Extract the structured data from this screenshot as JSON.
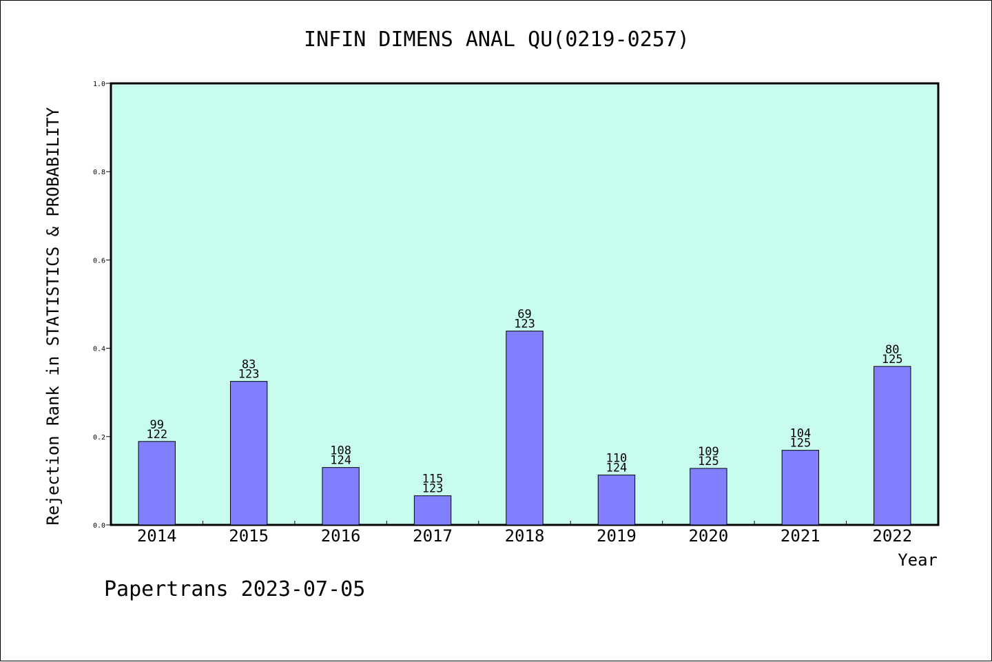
{
  "chart_data": {
    "type": "bar",
    "title": "INFIN DIMENS ANAL QU(0219-0257)",
    "xlabel": "Year",
    "ylabel": "Rejection Rank in STATISTICS & PROBABILITY",
    "ylim": [
      0,
      1.0
    ],
    "yticks": [
      "0.0",
      "0.2",
      "0.4",
      "0.6",
      "0.8",
      "1.0"
    ],
    "grid": false,
    "categories": [
      "2014",
      "2015",
      "2016",
      "2017",
      "2018",
      "2019",
      "2020",
      "2021",
      "2022"
    ],
    "values": [
      0.189,
      0.325,
      0.13,
      0.066,
      0.439,
      0.113,
      0.128,
      0.169,
      0.359
    ],
    "rank_labels": [
      "99",
      "83",
      "108",
      "115",
      "69",
      "110",
      "109",
      "104",
      "80"
    ],
    "total_labels": [
      "122",
      "123",
      "124",
      "123",
      "123",
      "124",
      "125",
      "125",
      "125"
    ],
    "colors": {
      "plot_background": "#c8fcee",
      "bar_fill": "#8080ff",
      "bar_stroke": "#000000"
    }
  },
  "footer": {
    "source": "Papertrans 2023-07-05"
  }
}
